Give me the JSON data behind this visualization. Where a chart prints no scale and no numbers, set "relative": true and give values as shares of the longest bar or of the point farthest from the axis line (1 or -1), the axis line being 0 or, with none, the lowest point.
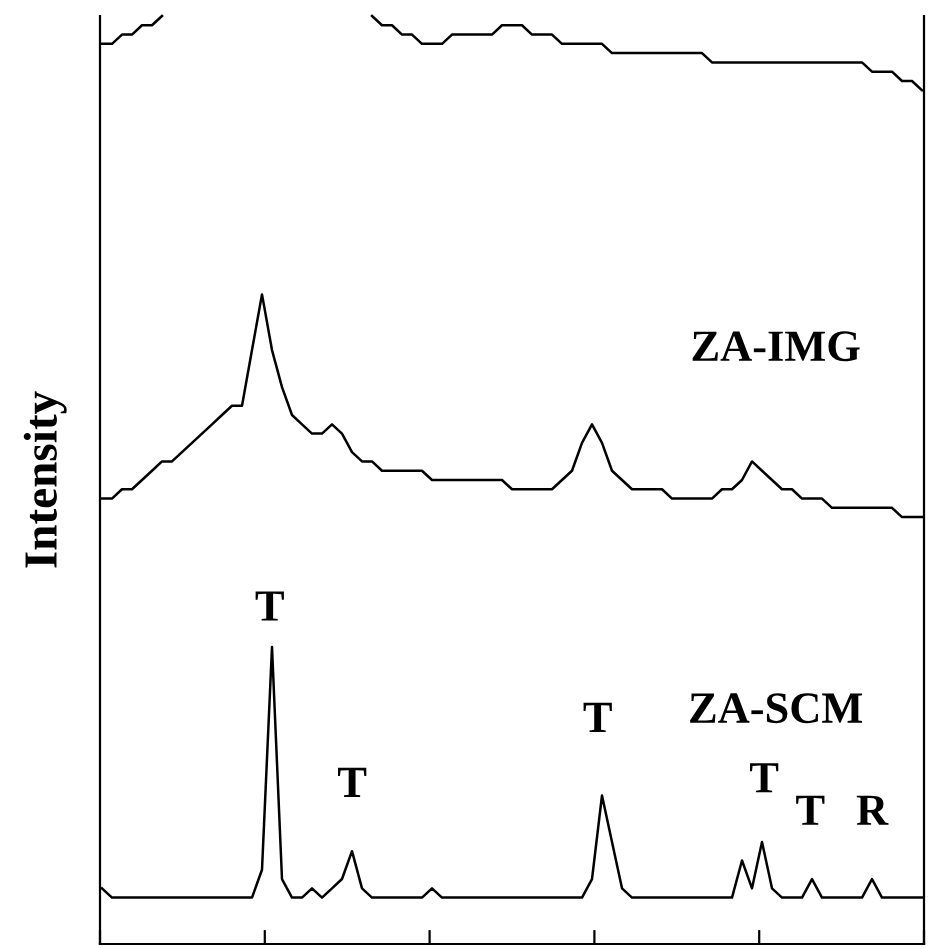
{
  "chart_data": {
    "type": "line",
    "relative": true,
    "ylabel": "Intensity",
    "grid": false,
    "legend": false,
    "marker": "none",
    "line_style": "solid",
    "categories": [
      null,
      null,
      null,
      null,
      null,
      null,
      null,
      null,
      null,
      null,
      null,
      null,
      null,
      null,
      null,
      null,
      null,
      null,
      null,
      null,
      null,
      null,
      null,
      null,
      null,
      null,
      null,
      null,
      null,
      null,
      null,
      null,
      null,
      null,
      null,
      null,
      null,
      null,
      null,
      null,
      null,
      null,
      null,
      null,
      null,
      null,
      null,
      null,
      null,
      null,
      null,
      null,
      null,
      null,
      null,
      null,
      null,
      null,
      null,
      null,
      null,
      null,
      null,
      null,
      null,
      null,
      null,
      null,
      null,
      null,
      null,
      null,
      null,
      null,
      null,
      null,
      null,
      null,
      null,
      null,
      null,
      null,
      null
    ],
    "series": [
      {
        "color": "#000000",
        "values": [
          0.97,
          0.97,
          0.98,
          0.98,
          0.99,
          0.99,
          1.0,
          null,
          null,
          null,
          null,
          null,
          null,
          null,
          null,
          null,
          null,
          null,
          null,
          null,
          null,
          null,
          null,
          null,
          null,
          null,
          null,
          1.0,
          0.99,
          0.99,
          0.98,
          0.98,
          0.97,
          0.97,
          0.97,
          0.98,
          0.98,
          0.98,
          0.98,
          0.98,
          0.99,
          0.99,
          0.99,
          0.98,
          0.98,
          0.98,
          0.97,
          0.97,
          0.97,
          0.97,
          0.97,
          0.96,
          0.96,
          0.96,
          0.96,
          0.96,
          0.96,
          0.96,
          0.96,
          0.96,
          0.96,
          0.95,
          0.95,
          0.95,
          0.95,
          0.95,
          0.95,
          0.95,
          0.95,
          0.95,
          0.95,
          0.95,
          0.95,
          0.95,
          0.95,
          0.95,
          0.95,
          0.94,
          0.94,
          0.94,
          0.93,
          0.93,
          0.92
        ]
      },
      {
        "name": "ZA-IMG",
        "color": "#000000",
        "values": [
          0.48,
          0.48,
          0.49,
          0.49,
          0.5,
          0.51,
          0.52,
          0.52,
          0.53,
          0.54,
          0.55,
          0.56,
          0.57,
          0.58,
          0.58,
          0.64,
          0.7,
          0.64,
          0.6,
          0.57,
          0.56,
          0.55,
          0.55,
          0.56,
          0.55,
          0.53,
          0.52,
          0.52,
          0.51,
          0.51,
          0.51,
          0.51,
          0.51,
          0.5,
          0.5,
          0.5,
          0.5,
          0.5,
          0.5,
          0.5,
          0.5,
          0.49,
          0.49,
          0.49,
          0.49,
          0.49,
          0.5,
          0.51,
          0.54,
          0.56,
          0.54,
          0.51,
          0.5,
          0.49,
          0.49,
          0.49,
          0.49,
          0.48,
          0.48,
          0.48,
          0.48,
          0.48,
          0.49,
          0.49,
          0.5,
          0.52,
          0.51,
          0.5,
          0.49,
          0.49,
          0.48,
          0.48,
          0.48,
          0.47,
          0.47,
          0.47,
          0.47,
          0.47,
          0.47,
          0.47,
          0.46,
          0.46,
          0.46
        ]
      },
      {
        "name": "ZA-SCM",
        "color": "#000000",
        "values": [
          0.06,
          0.05,
          0.05,
          0.05,
          0.05,
          0.05,
          0.05,
          0.05,
          0.05,
          0.05,
          0.05,
          0.05,
          0.05,
          0.05,
          0.05,
          0.05,
          0.08,
          0.32,
          0.07,
          0.05,
          0.05,
          0.06,
          0.05,
          0.06,
          0.07,
          0.1,
          0.06,
          0.05,
          0.05,
          0.05,
          0.05,
          0.05,
          0.05,
          0.06,
          0.05,
          0.05,
          0.05,
          0.05,
          0.05,
          0.05,
          0.05,
          0.05,
          0.05,
          0.05,
          0.05,
          0.05,
          0.05,
          0.05,
          0.05,
          0.07,
          0.16,
          0.11,
          0.06,
          0.05,
          0.05,
          0.05,
          0.05,
          0.05,
          0.05,
          0.05,
          0.05,
          0.05,
          0.05,
          0.05,
          0.09,
          0.06,
          0.11,
          0.06,
          0.05,
          0.05,
          0.05,
          0.07,
          0.05,
          0.05,
          0.05,
          0.05,
          0.05,
          0.07,
          0.05,
          0.05,
          0.05,
          0.05,
          0.05
        ]
      }
    ],
    "annotations": [
      "T",
      "T",
      "T",
      "T",
      "T",
      "R"
    ]
  }
}
